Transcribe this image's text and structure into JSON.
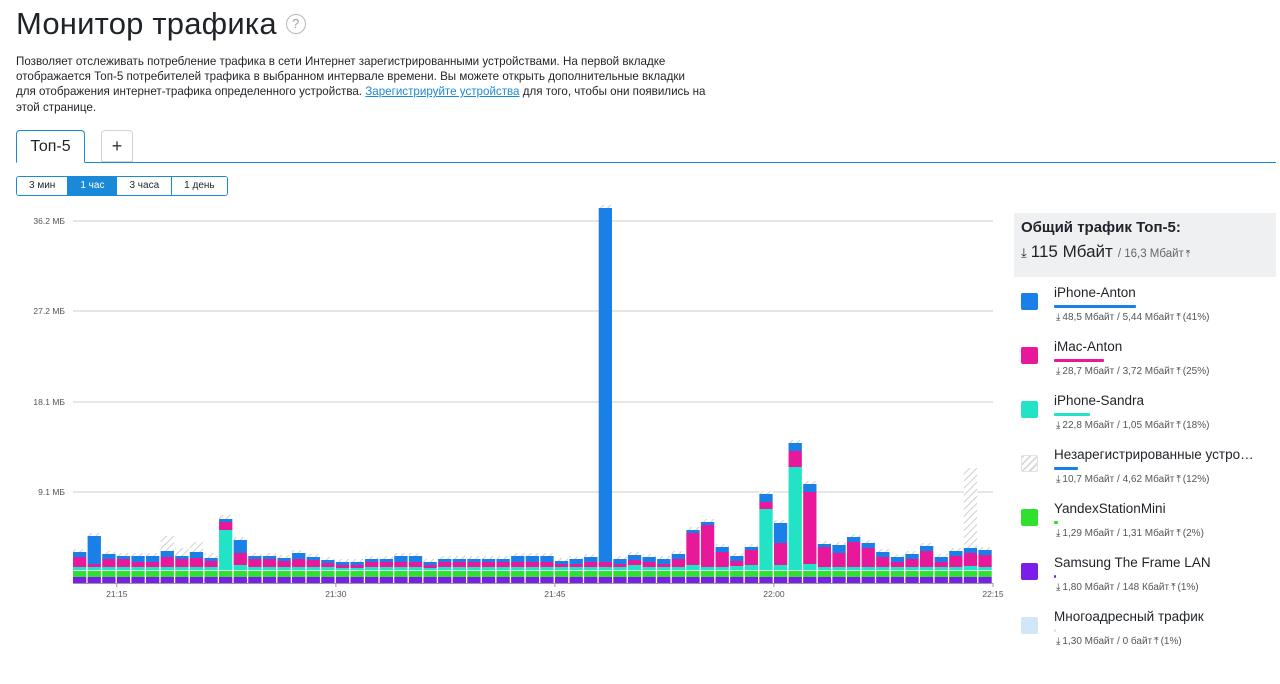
{
  "header": {
    "title": "Монитор трафика",
    "help_icon": "question-circle-icon"
  },
  "description": {
    "text_before": "Позволяет отслеживать потребление трафика в сети Интернет зарегистрированными устройствами. На первой вкладке отображается Топ-5 потребителей трафика в выбранном интервале времени. Вы можете открыть дополнительные вкладки для отображения интернет-трафика определенного устройства. ",
    "link": "Зарегистрируйте устройства",
    "text_after": " для того, чтобы они появились на этой странице."
  },
  "tabs": [
    {
      "label": "Топ-5",
      "active": true
    },
    {
      "label": "+",
      "active": false
    }
  ],
  "intervals": [
    {
      "label": "3 мин",
      "active": false
    },
    {
      "label": "1 час",
      "active": true
    },
    {
      "label": "3 часа",
      "active": false
    },
    {
      "label": "1 день",
      "active": false
    }
  ],
  "legend": {
    "title": "Общий трафик Топ-5:",
    "total_down": "115 Мбайт",
    "total_up": "/ 16,3 Мбайт",
    "items": [
      {
        "name": "iPhone-Anton",
        "color": "#1a7fe6",
        "pattern": "solid",
        "share": 0.41,
        "down": "48,5 Мбайт",
        "up": "5,44 Мбайт",
        "pct": "(41%)"
      },
      {
        "name": "iMac-Anton",
        "color": "#e8189a",
        "pattern": "solid",
        "share": 0.25,
        "down": "28,7 Мбайт",
        "up": "3,72 Мбайт",
        "pct": "(25%)"
      },
      {
        "name": "iPhone-Sandra",
        "color": "#22e3c6",
        "pattern": "solid",
        "share": 0.18,
        "down": "22,8 Мбайт",
        "up": "1,05 Мбайт",
        "pct": "(18%)"
      },
      {
        "name": "Незарегистрированные устройства",
        "color": "#d9d9d9",
        "pattern": "hatch",
        "share": 0.12,
        "down": "10,7 Мбайт",
        "up": "4,62 Мбайт",
        "pct": "(12%)"
      },
      {
        "name": "YandexStationMini",
        "color": "#2fe02f",
        "pattern": "solid",
        "share": 0.02,
        "down": "1,29 Мбайт",
        "up": "1,31 Мбайт",
        "pct": "(2%)"
      },
      {
        "name": "Samsung The Frame LAN",
        "color": "#7a1ee8",
        "pattern": "solid",
        "share": 0.01,
        "down": "1,80 Мбайт",
        "up": "148 Кбайт",
        "pct": "(1%)"
      },
      {
        "name": "Многоадресный трафик",
        "color": "#cfe7f7",
        "pattern": "solid",
        "share": 0.01,
        "down": "1,30 Мбайт",
        "up": "0 байт",
        "pct": "(1%)"
      }
    ]
  },
  "chart_data": {
    "type": "bar",
    "stacked": true,
    "ylim": [
      0,
      37
    ],
    "ytick_values": [
      9.1,
      18.1,
      27.2,
      36.2
    ],
    "ytick_labels": [
      "9.1 МБ",
      "18.1 МБ",
      "27.2 МБ",
      "36.2 МБ"
    ],
    "xtick_labels": [
      "21:15",
      "21:30",
      "21:45",
      "22:00",
      "22:15"
    ],
    "x_range": [
      "21:12",
      "22:15"
    ],
    "series_order": [
      "Samsung The Frame LAN",
      "YandexStationMini",
      "Многоадресный трафик",
      "iPhone-Sandra",
      "iMac-Anton",
      "iPhone-Anton",
      "Незарегистрированные устройства"
    ],
    "x": [
      "21:12",
      "21:13",
      "21:14",
      "21:15",
      "21:16",
      "21:17",
      "21:18",
      "21:19",
      "21:20",
      "21:21",
      "21:22",
      "21:23",
      "21:24",
      "21:25",
      "21:26",
      "21:27",
      "21:28",
      "21:29",
      "21:30",
      "21:31",
      "21:32",
      "21:33",
      "21:34",
      "21:35",
      "21:36",
      "21:37",
      "21:38",
      "21:39",
      "21:40",
      "21:41",
      "21:42",
      "21:43",
      "21:44",
      "21:45",
      "21:46",
      "21:47",
      "21:48",
      "21:49",
      "21:50",
      "21:51",
      "21:52",
      "21:53",
      "21:54",
      "21:55",
      "21:56",
      "21:57",
      "21:58",
      "21:59",
      "22:00",
      "22:01",
      "22:02",
      "22:03",
      "22:04",
      "22:05",
      "22:06",
      "22:07",
      "22:08",
      "22:09",
      "22:10",
      "22:11",
      "22:12",
      "22:13",
      "22:14"
    ],
    "series": [
      {
        "name": "Samsung The Frame LAN",
        "values": [
          0.6,
          0.6,
          0.6,
          0.6,
          0.6,
          0.6,
          0.6,
          0.6,
          0.6,
          0.6,
          0.6,
          0.6,
          0.6,
          0.6,
          0.6,
          0.6,
          0.6,
          0.6,
          0.6,
          0.6,
          0.6,
          0.6,
          0.6,
          0.6,
          0.6,
          0.6,
          0.6,
          0.6,
          0.6,
          0.6,
          0.6,
          0.6,
          0.6,
          0.6,
          0.6,
          0.6,
          0.6,
          0.6,
          0.6,
          0.6,
          0.6,
          0.6,
          0.6,
          0.6,
          0.6,
          0.6,
          0.6,
          0.6,
          0.6,
          0.6,
          0.6,
          0.6,
          0.6,
          0.6,
          0.6,
          0.6,
          0.6,
          0.6,
          0.6,
          0.6,
          0.6,
          0.6,
          0.6
        ]
      },
      {
        "name": "YandexStationMini",
        "values": [
          0.6,
          0.6,
          0.6,
          0.6,
          0.6,
          0.6,
          0.6,
          0.6,
          0.6,
          0.6,
          0.6,
          0.6,
          0.6,
          0.6,
          0.6,
          0.6,
          0.6,
          0.6,
          0.6,
          0.6,
          0.6,
          0.6,
          0.6,
          0.6,
          0.6,
          0.6,
          0.6,
          0.6,
          0.6,
          0.6,
          0.6,
          0.6,
          0.6,
          0.6,
          0.6,
          0.6,
          0.6,
          0.6,
          0.6,
          0.6,
          0.6,
          0.6,
          0.6,
          0.6,
          0.6,
          0.6,
          0.6,
          0.6,
          0.6,
          0.6,
          0.6,
          0.6,
          0.6,
          0.6,
          0.6,
          0.6,
          0.6,
          0.6,
          0.6,
          0.6,
          0.6,
          0.6,
          0.6
        ]
      },
      {
        "name": "Многоадресный трафик",
        "values": [
          0.1,
          0.1,
          0.1,
          0.1,
          0.1,
          0.1,
          0.1,
          0.1,
          0.1,
          0.1,
          0.1,
          0.1,
          0.1,
          0.1,
          0.1,
          0.1,
          0.1,
          0.1,
          0.1,
          0.1,
          0.1,
          0.1,
          0.1,
          0.1,
          0.1,
          0.1,
          0.1,
          0.1,
          0.1,
          0.1,
          0.1,
          0.1,
          0.1,
          0.1,
          0.1,
          0.1,
          0.1,
          0.1,
          0.1,
          0.1,
          0.1,
          0.1,
          0.1,
          0.1,
          0.1,
          0.1,
          0.1,
          0.1,
          0.1,
          0.1,
          0.1,
          0.1,
          0.1,
          0.1,
          0.1,
          0.1,
          0.1,
          0.1,
          0.1,
          0.1,
          0.1,
          0.1,
          0.1
        ]
      },
      {
        "name": "iPhone-Sandra",
        "values": [
          0.3,
          0.3,
          0.3,
          0.3,
          0.3,
          0.3,
          0.3,
          0.3,
          0.3,
          0.3,
          4.0,
          0.5,
          0.3,
          0.3,
          0.3,
          0.3,
          0.3,
          0.3,
          0.2,
          0.2,
          0.3,
          0.3,
          0.3,
          0.3,
          0.2,
          0.3,
          0.3,
          0.3,
          0.3,
          0.3,
          0.3,
          0.3,
          0.3,
          0.3,
          0.3,
          0.3,
          0.3,
          0.3,
          0.5,
          0.3,
          0.3,
          0.3,
          0.5,
          0.3,
          0.3,
          0.4,
          0.5,
          6.1,
          0.5,
          10.3,
          0.6,
          0.3,
          0.3,
          0.3,
          0.3,
          0.3,
          0.3,
          0.3,
          0.3,
          0.3,
          0.3,
          0.4,
          0.3
        ]
      },
      {
        "name": "iMac-Anton",
        "values": [
          1.0,
          0.3,
          0.8,
          0.8,
          0.5,
          0.5,
          1.0,
          0.8,
          0.9,
          0.6,
          0.8,
          1.2,
          0.8,
          0.8,
          0.6,
          0.8,
          0.7,
          0.4,
          0.3,
          0.3,
          0.5,
          0.5,
          0.5,
          0.5,
          0.3,
          0.5,
          0.5,
          0.5,
          0.5,
          0.5,
          0.5,
          0.5,
          0.5,
          0.3,
          0.3,
          0.5,
          0.5,
          0.3,
          0.5,
          0.5,
          0.3,
          0.8,
          3.2,
          4.2,
          1.5,
          0.5,
          1.5,
          0.7,
          2.2,
          1.6,
          7.2,
          2.0,
          1.4,
          2.5,
          1.9,
          1.0,
          0.5,
          0.8,
          1.6,
          0.5,
          1.1,
          1.3,
          1.2
        ]
      },
      {
        "name": "iPhone-Anton",
        "values": [
          0.5,
          2.8,
          0.5,
          0.3,
          0.6,
          0.6,
          0.6,
          0.3,
          0.6,
          0.3,
          0.3,
          1.3,
          0.3,
          0.3,
          0.3,
          0.6,
          0.3,
          0.3,
          0.3,
          0.3,
          0.3,
          0.3,
          0.6,
          0.6,
          0.3,
          0.3,
          0.3,
          0.3,
          0.3,
          0.3,
          0.6,
          0.6,
          0.6,
          0.3,
          0.5,
          0.5,
          0.5,
          0.5,
          0.5,
          0.5,
          0.5,
          0.5,
          0.3,
          0.3,
          0.5,
          0.5,
          0.3,
          0.8,
          2.0,
          0.8,
          0.8,
          0.3,
          0.8,
          0.5,
          0.5,
          0.5,
          0.5,
          0.5,
          0.5,
          0.5,
          0.5,
          0.5,
          0.5
        ]
      },
      {
        "name": "Незарегистрированные устройства",
        "values": [
          0.3,
          0.3,
          0.3,
          0.3,
          0.3,
          0.3,
          1.5,
          0.8,
          1.0,
          0.5,
          0.4,
          0.3,
          0.3,
          0.3,
          0.3,
          0.3,
          0.3,
          0.3,
          0.3,
          0.3,
          0.3,
          0.3,
          0.3,
          0.3,
          0.3,
          0.3,
          0.3,
          0.3,
          0.3,
          0.3,
          0.3,
          0.3,
          0.3,
          0.3,
          0.3,
          0.3,
          0.3,
          0.3,
          0.3,
          0.3,
          0.3,
          0.3,
          0.3,
          0.3,
          0.3,
          0.3,
          0.3,
          0.3,
          0.3,
          0.3,
          0.3,
          0.3,
          0.3,
          0.3,
          0.3,
          0.3,
          0.3,
          0.3,
          0.3,
          0.3,
          0.3,
          0.3,
          0.3
        ]
      }
    ],
    "extra_points": [
      {
        "x": "21:48",
        "series": "iPhone-Anton",
        "value": 35.4
      },
      {
        "x": "22:13",
        "series": "Незарегистрированные устройства",
        "value": 8.0
      }
    ]
  }
}
